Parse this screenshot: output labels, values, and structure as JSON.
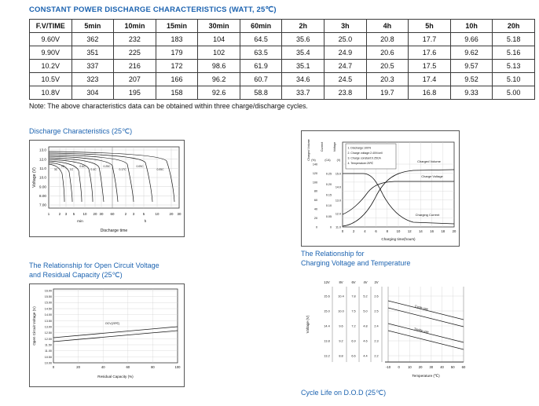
{
  "header": {
    "title": "CONSTANT POWER DISCHARGE CHARACTERISTICS (WATT, 25℃)"
  },
  "table": {
    "columns": [
      "F.V/TIME",
      "5min",
      "10min",
      "15min",
      "30min",
      "60min",
      "2h",
      "3h",
      "4h",
      "5h",
      "10h",
      "20h"
    ],
    "rows": [
      [
        "9.60V",
        "362",
        "232",
        "183",
        "104",
        "64.5",
        "35.6",
        "25.0",
        "20.8",
        "17.7",
        "9.66",
        "5.18"
      ],
      [
        "9.90V",
        "351",
        "225",
        "179",
        "102",
        "63.5",
        "35.4",
        "24.9",
        "20.6",
        "17.6",
        "9.62",
        "5.16"
      ],
      [
        "10.2V",
        "337",
        "216",
        "172",
        "98.6",
        "61.9",
        "35.1",
        "24.7",
        "20.5",
        "17.5",
        "9.57",
        "5.13"
      ],
      [
        "10.5V",
        "323",
        "207",
        "166",
        "96.2",
        "60.7",
        "34.6",
        "24.5",
        "20.3",
        "17.4",
        "9.52",
        "5.10"
      ],
      [
        "10.8V",
        "304",
        "195",
        "158",
        "92.6",
        "58.8",
        "33.7",
        "23.8",
        "19.7",
        "16.8",
        "9.33",
        "5.00"
      ]
    ],
    "note": "Note: The above characteristics data can be obtained within three charge/discharge cycles."
  },
  "discharge_chart": {
    "heading": "Discharge Characteristics (25℃)",
    "ylabel": "Voltage (V)",
    "yticks": [
      "13.0",
      "12.0",
      "11.0",
      "10.0",
      "9.00",
      "8.00",
      "7.00"
    ],
    "xticks_min": [
      "1",
      "2",
      "3",
      "5",
      "10",
      "20",
      "30",
      "60"
    ],
    "xticks_h": [
      "2",
      "3",
      "5",
      "10",
      "20",
      "30"
    ],
    "x_unit_min": "min",
    "x_unit_h": "h",
    "xlabel": "Discharge time",
    "curve_labels": [
      "3C",
      "2C",
      "1C",
      "0.6C",
      "0.4C",
      "0.25C",
      "0.17C",
      "0.09C",
      "0.05C"
    ]
  },
  "charge_chart": {
    "axis_titles": [
      "Charged Volume",
      "Current",
      "Voltage"
    ],
    "axis_units": [
      "(%)",
      "(CA)",
      "(V)"
    ],
    "volume_ticks": [
      "140",
      "120",
      "100",
      "80",
      "60",
      "40",
      "20",
      "0"
    ],
    "current_ticks": [
      "0.25",
      "0.20",
      "0.15",
      "0.10",
      "0.05",
      "0"
    ],
    "voltage_ticks": [
      "15.0",
      "14.0",
      "13.0",
      "12.0",
      "11.0"
    ],
    "legend": [
      "1. Discharge:100%",
      "2. Charge voltage:2.40V/cell",
      "3. Charge constant:0.25CA",
      "4. Temperature:25℃"
    ],
    "curve_labels": [
      "Charged Volume",
      "Charge Voltage",
      "Charging Current"
    ],
    "xticks": [
      "0",
      "2",
      "4",
      "6",
      "8",
      "10",
      "12",
      "14",
      "16",
      "18",
      "20"
    ],
    "xlabel": "Charging time(hours)"
  },
  "ocv_chart": {
    "heading_line1": "The Relationship for Open Circuit Voltage",
    "heading_line2": "and Residual Capacity (25℃)",
    "ylabel": "Open Circuit Voltage (V)",
    "yticks": [
      "16.00",
      "15.50",
      "15.00",
      "14.50",
      "14.00",
      "13.50",
      "13.00",
      "12.50",
      "12.00",
      "11.50",
      "11.00",
      "10.50",
      "10.00"
    ],
    "xticks": [
      "0",
      "20",
      "40",
      "60",
      "80",
      "100"
    ],
    "xlabel": "Residual Capacity (%)",
    "curve_label": "OCV(25℃)"
  },
  "temp_chart": {
    "heading_line1": "The Relationship for",
    "heading_line2": "Charging Voltage and Temperature",
    "ylabel": "Voltage (V)",
    "scale_headers": [
      "12V",
      "8V",
      "6V",
      "4V",
      "2V"
    ],
    "scale_rows": [
      [
        "15.6",
        "10.4",
        "7.8",
        "5.2",
        "2.6"
      ],
      [
        "15.0",
        "10.0",
        "7.5",
        "5.0",
        "2.5"
      ],
      [
        "14.4",
        "9.6",
        "7.2",
        "4.8",
        "2.4"
      ],
      [
        "13.8",
        "9.2",
        "6.9",
        "4.6",
        "2.3"
      ],
      [
        "13.2",
        "8.8",
        "6.6",
        "4.4",
        "2.2"
      ]
    ],
    "band_labels": [
      "Cycle use",
      "Trickle use"
    ],
    "xticks": [
      "-10",
      "0",
      "10",
      "20",
      "30",
      "40",
      "50",
      "60"
    ],
    "xlabel": "Temperature (℃)"
  },
  "cycle_life": {
    "heading": "Cycle Life on D.O.D (25℃)"
  }
}
